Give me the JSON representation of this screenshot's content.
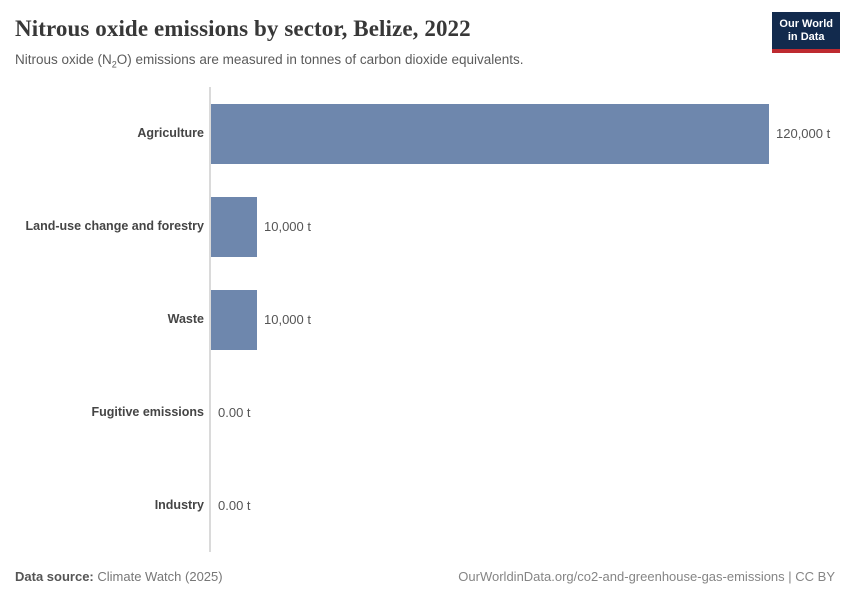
{
  "header": {
    "title": "Nitrous oxide emissions by sector, Belize, 2022",
    "subtitle_pre": "Nitrous oxide (N",
    "subtitle_sub": "2",
    "subtitle_post": "O) emissions are measured in tonnes of carbon dioxide equivalents."
  },
  "logo": {
    "line1": "Our World",
    "line2": "in Data",
    "bg_color": "#122a4d",
    "underline_color": "#be2a30"
  },
  "chart_data": {
    "type": "bar",
    "orientation": "horizontal",
    "title": "Nitrous oxide emissions by sector, Belize, 2022",
    "unit": "tonnes of carbon dioxide equivalents",
    "categories": [
      "Agriculture",
      "Land-use change and forestry",
      "Waste",
      "Fugitive emissions",
      "Industry"
    ],
    "values": [
      120000,
      10000,
      10000,
      0,
      0
    ],
    "value_labels": [
      "120,000 t",
      "10,000 t",
      "10,000 t",
      "0.00 t",
      "0.00 t"
    ],
    "xlim": [
      0,
      120000
    ],
    "bar_color": "#6e87ad",
    "axis_color": "#dadada",
    "grid": false,
    "legend": "none"
  },
  "footer": {
    "datasource_label": "Data source:",
    "datasource_value": " Climate Watch (2025)",
    "right_text": "OurWorldinData.org/co2-and-greenhouse-gas-emissions | CC BY"
  }
}
